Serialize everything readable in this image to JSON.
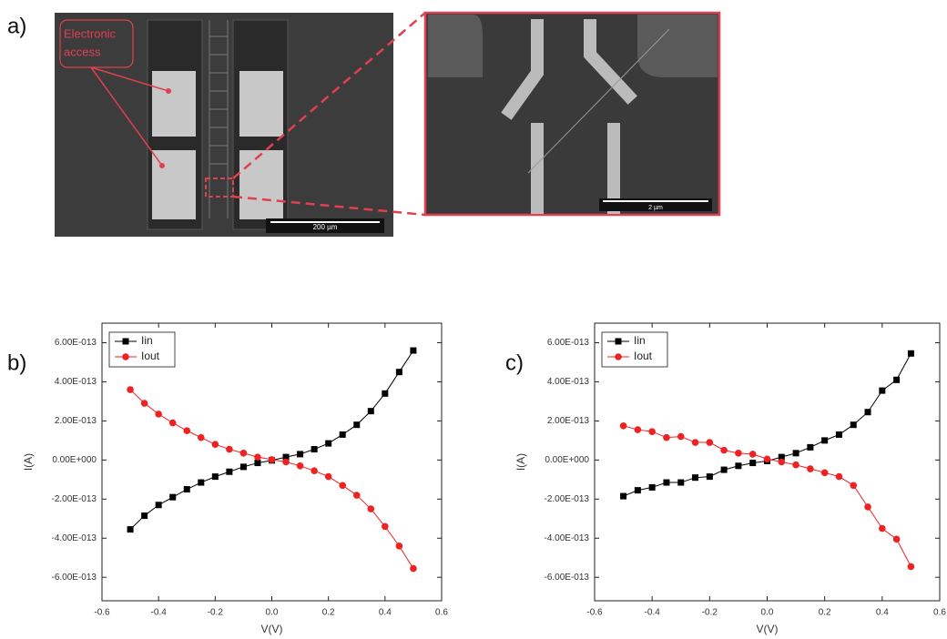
{
  "figure_a": {
    "label": "a)",
    "annotation": [
      "Electronic",
      "access"
    ],
    "scale_bar_main": "200 µm",
    "scale_bar_inset": "2 µm"
  },
  "chart_data": [
    {
      "type": "line",
      "panel_label": "b)",
      "x_label": "V(V)",
      "y_label": "I(A)",
      "x": [
        -0.5,
        -0.45,
        -0.4,
        -0.35,
        -0.3,
        -0.25,
        -0.2,
        -0.15,
        -0.1,
        -0.05,
        0,
        0.05,
        0.1,
        0.15,
        0.2,
        0.25,
        0.3,
        0.35,
        0.4,
        0.45,
        0.5
      ],
      "series": [
        {
          "name": "Iin",
          "color": "#000000",
          "marker": "square",
          "values": [
            -3.55e-13,
            -2.85e-13,
            -2.3e-13,
            -1.9e-13,
            -1.5e-13,
            -1.15e-13,
            -8.5e-14,
            -6e-14,
            -3.5e-14,
            -1.5e-14,
            -2e-15,
            1.5e-14,
            3e-14,
            5.5e-14,
            8.5e-14,
            1.3e-13,
            1.8e-13,
            2.5e-13,
            3.4e-13,
            4.5e-13,
            5.6e-13
          ]
        },
        {
          "name": "Iout",
          "color": "#ee2222",
          "marker": "circle",
          "values": [
            3.6e-13,
            2.9e-13,
            2.35e-13,
            1.9e-13,
            1.5e-13,
            1.15e-13,
            8e-14,
            5.5e-14,
            3.5e-14,
            1.5e-14,
            2e-15,
            -1e-14,
            -3e-14,
            -5.5e-14,
            -8.5e-14,
            -1.3e-13,
            -1.8e-13,
            -2.5e-13,
            -3.4e-13,
            -4.4e-13,
            -5.55e-13
          ]
        }
      ],
      "xlim": [
        -0.6,
        0.6
      ],
      "xticks": [
        -0.6,
        -0.4,
        -0.2,
        {
          "value": 0,
          "label": "0.0"
        },
        0.2,
        0.4,
        0.6
      ],
      "ylim": [
        -7.2e-13,
        7e-13
      ],
      "yticks": [
        {
          "value": -6e-13,
          "label": "-6.00E-013"
        },
        {
          "value": -4e-13,
          "label": "-4.00E-013"
        },
        {
          "value": -2e-13,
          "label": "-2.00E-013"
        },
        {
          "value": 0,
          "label": "0.00E+000"
        },
        {
          "value": 2e-13,
          "label": "2.00E-013"
        },
        {
          "value": 4e-13,
          "label": "4.00E-013"
        },
        {
          "value": 6e-13,
          "label": "6.00E-013"
        }
      ],
      "legend": "upper left"
    },
    {
      "type": "line",
      "panel_label": "c)",
      "x_label": "V(V)",
      "y_label": "I(A)",
      "x": [
        -0.5,
        -0.45,
        -0.4,
        -0.35,
        -0.3,
        -0.25,
        -0.2,
        -0.15,
        -0.1,
        -0.05,
        0,
        0.05,
        0.1,
        0.15,
        0.2,
        0.25,
        0.3,
        0.35,
        0.4,
        0.45,
        0.5
      ],
      "series": [
        {
          "name": "Iin",
          "color": "#000000",
          "marker": "square",
          "values": [
            -1.85e-13,
            -1.55e-13,
            -1.4e-13,
            -1.15e-13,
            -1.15e-13,
            -9e-14,
            -8.5e-14,
            -5e-14,
            -3e-14,
            -1.5e-14,
            -5e-15,
            1.5e-14,
            3.5e-14,
            6.5e-14,
            1e-13,
            1.3e-13,
            1.8e-13,
            2.45e-13,
            3.55e-13,
            4.1e-13,
            5.45e-13
          ]
        },
        {
          "name": "Iout",
          "color": "#ee2222",
          "marker": "circle",
          "values": [
            1.75e-13,
            1.55e-13,
            1.45e-13,
            1.15e-13,
            1.2e-13,
            9e-14,
            9e-14,
            5e-14,
            3.5e-14,
            3e-14,
            5e-15,
            -1e-14,
            -2.5e-14,
            -4.5e-14,
            -6.5e-14,
            -8.5e-14,
            -1.3e-13,
            -2.4e-13,
            -3.5e-13,
            -4.05e-13,
            -5.45e-13
          ]
        }
      ],
      "xlim": [
        -0.6,
        0.6
      ],
      "xticks": [
        -0.6,
        -0.4,
        -0.2,
        {
          "value": 0,
          "label": "0.0"
        },
        0.2,
        0.4,
        0.6
      ],
      "ylim": [
        -7.2e-13,
        7e-13
      ],
      "yticks": [
        {
          "value": -6e-13,
          "label": "-6.00E-013"
        },
        {
          "value": -4e-13,
          "label": "-4.00E-013"
        },
        {
          "value": -2e-13,
          "label": "-2.00E-013"
        },
        {
          "value": 0,
          "label": "0.00E+000"
        },
        {
          "value": 2e-13,
          "label": "2.00E-013"
        },
        {
          "value": 4e-13,
          "label": "4.00E-013"
        },
        {
          "value": 6e-13,
          "label": "6.00E-013"
        }
      ],
      "legend": "upper left"
    }
  ]
}
